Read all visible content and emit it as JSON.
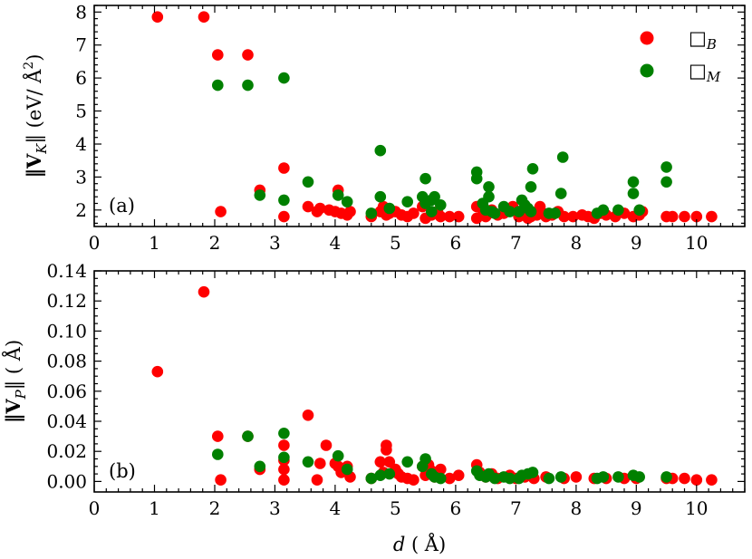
{
  "colors": {
    "series_B": "#ff0000",
    "series_M": "#008000"
  },
  "chart_data": [
    {
      "panel": "(a)",
      "type": "scatter",
      "ylabel_main": "‖V",
      "ylabel_sub": "K",
      "ylabel_tail": "‖ (eV/ Å",
      "ylabel_sup": "2",
      "ylabel_close": ")",
      "xlim": [
        0,
        10.8
      ],
      "ylim": [
        1.5,
        8.2
      ],
      "xticks": [
        "0",
        "1",
        "2",
        "3",
        "4",
        "5",
        "6",
        "7",
        "8",
        "9",
        "10"
      ],
      "yticks": [
        "2",
        "3",
        "4",
        "5",
        "6",
        "7",
        "8"
      ],
      "legend": {
        "position": "top-right",
        "entries": [
          {
            "symbol": "□",
            "sub": "B",
            "series": "B"
          },
          {
            "symbol": "□",
            "sub": "M",
            "series": "M"
          }
        ]
      },
      "series": [
        {
          "name": "B",
          "points": [
            [
              1.05,
              7.85
            ],
            [
              1.82,
              7.85
            ],
            [
              2.05,
              6.7
            ],
            [
              2.55,
              6.7
            ],
            [
              2.1,
              1.95
            ],
            [
              2.75,
              2.6
            ],
            [
              3.15,
              3.27
            ],
            [
              3.15,
              1.8
            ],
            [
              3.55,
              2.1
            ],
            [
              3.7,
              1.95
            ],
            [
              3.75,
              2.05
            ],
            [
              3.9,
              2.0
            ],
            [
              4.0,
              1.95
            ],
            [
              4.05,
              2.6
            ],
            [
              4.1,
              1.9
            ],
            [
              4.2,
              1.85
            ],
            [
              4.25,
              1.95
            ],
            [
              4.6,
              1.8
            ],
            [
              4.75,
              1.95
            ],
            [
              4.8,
              2.1
            ],
            [
              4.85,
              1.85
            ],
            [
              4.9,
              1.9
            ],
            [
              5.0,
              1.95
            ],
            [
              5.1,
              1.85
            ],
            [
              5.2,
              1.8
            ],
            [
              5.3,
              1.9
            ],
            [
              5.45,
              2.1
            ],
            [
              5.5,
              1.75
            ],
            [
              5.6,
              1.85
            ],
            [
              5.7,
              1.95
            ],
            [
              5.75,
              1.8
            ],
            [
              5.9,
              1.8
            ],
            [
              6.05,
              1.8
            ],
            [
              6.35,
              2.1
            ],
            [
              6.35,
              1.75
            ],
            [
              6.45,
              1.85
            ],
            [
              6.5,
              1.8
            ],
            [
              6.55,
              1.9
            ],
            [
              6.6,
              2.0
            ],
            [
              6.7,
              1.85
            ],
            [
              6.8,
              1.9
            ],
            [
              6.9,
              2.0
            ],
            [
              6.95,
              2.1
            ],
            [
              7.05,
              1.8
            ],
            [
              7.1,
              1.9
            ],
            [
              7.15,
              2.0
            ],
            [
              7.2,
              1.75
            ],
            [
              7.25,
              1.8
            ],
            [
              7.35,
              1.85
            ],
            [
              7.4,
              2.1
            ],
            [
              7.45,
              1.9
            ],
            [
              7.5,
              1.8
            ],
            [
              7.6,
              1.85
            ],
            [
              7.7,
              1.95
            ],
            [
              7.8,
              1.8
            ],
            [
              7.95,
              1.8
            ],
            [
              8.1,
              1.85
            ],
            [
              8.2,
              1.8
            ],
            [
              8.3,
              1.75
            ],
            [
              8.4,
              1.9
            ],
            [
              8.5,
              1.85
            ],
            [
              8.65,
              1.8
            ],
            [
              8.8,
              1.9
            ],
            [
              8.95,
              1.8
            ],
            [
              9.05,
              1.85
            ],
            [
              9.1,
              1.95
            ],
            [
              9.5,
              1.8
            ],
            [
              9.6,
              1.8
            ],
            [
              9.8,
              1.8
            ],
            [
              10.0,
              1.8
            ],
            [
              10.25,
              1.8
            ]
          ]
        },
        {
          "name": "M",
          "points": [
            [
              2.05,
              5.78
            ],
            [
              2.55,
              5.78
            ],
            [
              3.15,
              6.0
            ],
            [
              2.75,
              2.45
            ],
            [
              3.15,
              2.3
            ],
            [
              3.55,
              2.85
            ],
            [
              4.05,
              2.45
            ],
            [
              4.2,
              2.25
            ],
            [
              4.75,
              3.8
            ],
            [
              4.75,
              2.4
            ],
            [
              4.6,
              1.9
            ],
            [
              4.9,
              2.05
            ],
            [
              5.2,
              2.25
            ],
            [
              5.45,
              2.4
            ],
            [
              5.5,
              2.95
            ],
            [
              5.5,
              2.2
            ],
            [
              5.6,
              2.3
            ],
            [
              5.65,
              2.4
            ],
            [
              5.6,
              1.95
            ],
            [
              5.75,
              2.15
            ],
            [
              6.35,
              3.15
            ],
            [
              6.35,
              2.95
            ],
            [
              6.45,
              2.2
            ],
            [
              6.5,
              2.0
            ],
            [
              6.55,
              2.4
            ],
            [
              6.55,
              2.7
            ],
            [
              6.6,
              1.95
            ],
            [
              6.65,
              1.9
            ],
            [
              6.8,
              2.1
            ],
            [
              6.9,
              1.95
            ],
            [
              7.05,
              1.95
            ],
            [
              7.1,
              2.3
            ],
            [
              7.15,
              2.15
            ],
            [
              7.2,
              2.05
            ],
            [
              7.25,
              1.95
            ],
            [
              7.25,
              2.7
            ],
            [
              7.28,
              3.25
            ],
            [
              7.55,
              1.9
            ],
            [
              7.65,
              1.9
            ],
            [
              7.75,
              2.5
            ],
            [
              7.78,
              3.6
            ],
            [
              8.35,
              1.9
            ],
            [
              8.45,
              2.0
            ],
            [
              8.7,
              2.0
            ],
            [
              8.95,
              2.5
            ],
            [
              8.95,
              2.85
            ],
            [
              9.05,
              2.0
            ],
            [
              9.5,
              3.3
            ],
            [
              9.5,
              2.85
            ]
          ]
        }
      ]
    },
    {
      "panel": "(b)",
      "type": "scatter",
      "ylabel_main": "‖V",
      "ylabel_sub": "P",
      "ylabel_tail": "‖ ( Å)",
      "xlabel_main": "d",
      "xlabel_tail": " ( Å)",
      "xlim": [
        0,
        10.8
      ],
      "ylim": [
        -0.007,
        0.14
      ],
      "xticks": [
        "0",
        "1",
        "2",
        "3",
        "4",
        "5",
        "6",
        "7",
        "8",
        "9",
        "10"
      ],
      "yticks": [
        "0.00",
        "0.02",
        "0.04",
        "0.06",
        "0.08",
        "0.10",
        "0.12",
        "0.14"
      ],
      "series": [
        {
          "name": "B",
          "points": [
            [
              1.05,
              0.073
            ],
            [
              1.82,
              0.126
            ],
            [
              2.05,
              0.03
            ],
            [
              2.1,
              0.001
            ],
            [
              2.55,
              0.03
            ],
            [
              2.75,
              0.008
            ],
            [
              3.15,
              0.024
            ],
            [
              3.15,
              0.014
            ],
            [
              3.15,
              0.008
            ],
            [
              3.15,
              0.001
            ],
            [
              3.55,
              0.044
            ],
            [
              3.7,
              0.001
            ],
            [
              3.75,
              0.012
            ],
            [
              3.85,
              0.024
            ],
            [
              4.0,
              0.012
            ],
            [
              4.05,
              0.01
            ],
            [
              4.1,
              0.006
            ],
            [
              4.2,
              0.01
            ],
            [
              4.25,
              0.003
            ],
            [
              4.6,
              0.002
            ],
            [
              4.75,
              0.013
            ],
            [
              4.8,
              0.006
            ],
            [
              4.85,
              0.024
            ],
            [
              4.85,
              0.021
            ],
            [
              4.9,
              0.013
            ],
            [
              5.0,
              0.008
            ],
            [
              5.05,
              0.005
            ],
            [
              5.1,
              0.003
            ],
            [
              5.2,
              0.002
            ],
            [
              5.3,
              0.001
            ],
            [
              5.45,
              0.01
            ],
            [
              5.5,
              0.004
            ],
            [
              5.55,
              0.011
            ],
            [
              5.6,
              0.007
            ],
            [
              5.65,
              0.003
            ],
            [
              5.75,
              0.008
            ],
            [
              5.9,
              0.002
            ],
            [
              6.05,
              0.004
            ],
            [
              6.35,
              0.011
            ],
            [
              6.4,
              0.006
            ],
            [
              6.5,
              0.003
            ],
            [
              6.6,
              0.005
            ],
            [
              6.7,
              0.002
            ],
            [
              6.9,
              0.004
            ],
            [
              7.0,
              0.002
            ],
            [
              7.15,
              0.003
            ],
            [
              7.3,
              0.002
            ],
            [
              7.5,
              0.003
            ],
            [
              7.8,
              0.002
            ],
            [
              8.0,
              0.003
            ],
            [
              8.3,
              0.002
            ],
            [
              8.5,
              0.002
            ],
            [
              8.8,
              0.002
            ],
            [
              9.0,
              0.002
            ],
            [
              9.5,
              0.002
            ],
            [
              9.6,
              0.002
            ],
            [
              9.8,
              0.002
            ],
            [
              10.0,
              0.001
            ],
            [
              10.25,
              0.001
            ]
          ]
        },
        {
          "name": "M",
          "points": [
            [
              2.05,
              0.018
            ],
            [
              2.55,
              0.03
            ],
            [
              2.75,
              0.01
            ],
            [
              3.15,
              0.032
            ],
            [
              3.15,
              0.016
            ],
            [
              3.55,
              0.013
            ],
            [
              4.05,
              0.017
            ],
            [
              4.2,
              0.008
            ],
            [
              4.6,
              0.002
            ],
            [
              4.75,
              0.004
            ],
            [
              4.9,
              0.005
            ],
            [
              5.2,
              0.013
            ],
            [
              5.45,
              0.01
            ],
            [
              5.5,
              0.015
            ],
            [
              5.6,
              0.005
            ],
            [
              5.65,
              0.003
            ],
            [
              5.75,
              0.002
            ],
            [
              6.35,
              0.007
            ],
            [
              6.4,
              0.004
            ],
            [
              6.5,
              0.003
            ],
            [
              6.55,
              0.005
            ],
            [
              6.65,
              0.002
            ],
            [
              6.8,
              0.003
            ],
            [
              6.9,
              0.002
            ],
            [
              7.05,
              0.002
            ],
            [
              7.1,
              0.004
            ],
            [
              7.2,
              0.005
            ],
            [
              7.28,
              0.006
            ],
            [
              7.55,
              0.002
            ],
            [
              7.75,
              0.003
            ],
            [
              8.35,
              0.002
            ],
            [
              8.45,
              0.003
            ],
            [
              8.7,
              0.003
            ],
            [
              8.95,
              0.004
            ],
            [
              9.05,
              0.003
            ],
            [
              9.5,
              0.003
            ]
          ]
        }
      ]
    }
  ]
}
